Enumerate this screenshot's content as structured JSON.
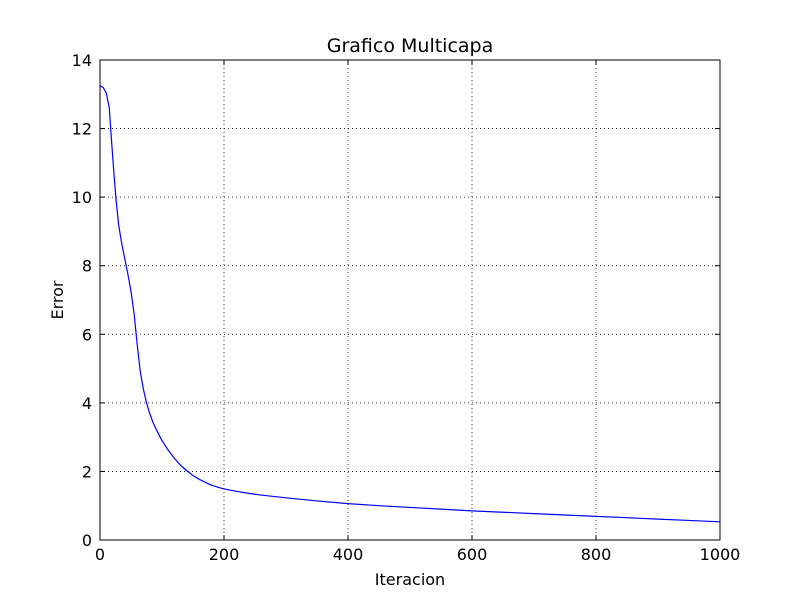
{
  "chart_data": {
    "type": "line",
    "title": "Grafico Multicapa",
    "xlabel": "Iteracion",
    "ylabel": "Error",
    "xlim": [
      0,
      1000
    ],
    "ylim": [
      0,
      14
    ],
    "x_ticks": [
      "0",
      "200",
      "400",
      "600",
      "800",
      "1000"
    ],
    "y_ticks": [
      "0",
      "2",
      "4",
      "6",
      "8",
      "10",
      "12",
      "14"
    ],
    "grid": true,
    "series": [
      {
        "color": "#0000ff",
        "x": [
          0,
          5,
          10,
          15,
          18,
          22,
          26,
          30,
          35,
          40,
          45,
          50,
          55,
          60,
          65,
          70,
          75,
          80,
          85,
          90,
          100,
          110,
          120,
          130,
          140,
          150,
          160,
          170,
          180,
          190,
          200,
          220,
          240,
          260,
          280,
          300,
          350,
          400,
          450,
          500,
          550,
          600,
          650,
          700,
          750,
          800,
          850,
          900,
          950,
          1000
        ],
        "y": [
          13.25,
          13.2,
          13.05,
          12.6,
          11.8,
          10.8,
          9.9,
          9.2,
          8.65,
          8.2,
          7.75,
          7.25,
          6.6,
          5.7,
          4.9,
          4.4,
          4.0,
          3.7,
          3.45,
          3.25,
          2.9,
          2.62,
          2.38,
          2.18,
          2.02,
          1.88,
          1.77,
          1.68,
          1.6,
          1.54,
          1.49,
          1.42,
          1.36,
          1.31,
          1.27,
          1.23,
          1.14,
          1.06,
          1.0,
          0.95,
          0.9,
          0.85,
          0.81,
          0.77,
          0.73,
          0.69,
          0.65,
          0.61,
          0.57,
          0.53
        ]
      }
    ]
  }
}
